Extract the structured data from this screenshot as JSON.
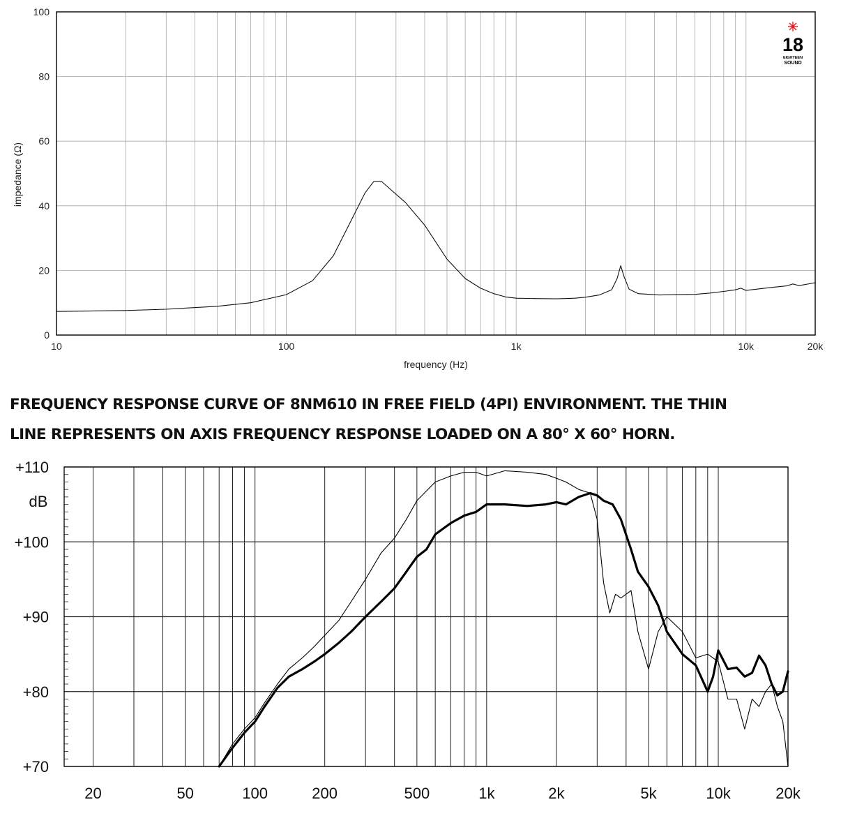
{
  "caption": {
    "line1": "FREQUENCY RESPONSE CURVE OF 8NM610 IN FREE FIELD (4PI) ENVIRONMENT. THE THIN",
    "line2": "LINE REPRESENTS ON AXIS FREQUENCY RESPONSE LOADED ON A 80° X 60° HORN."
  },
  "logo": {
    "number": "18",
    "line1": "EIGHTEEN",
    "line2": "SOUND",
    "star_color": "#e41b23"
  },
  "chart_data": [
    {
      "type": "line",
      "title": "",
      "xlabel": "frequency (Hz)",
      "ylabel": "impedance (Ω)",
      "xscale": "log",
      "xlim": [
        10,
        20000
      ],
      "ylim": [
        0,
        100
      ],
      "grid": true,
      "x_ticks": [
        {
          "value": 10,
          "label": "10"
        },
        {
          "value": 100,
          "label": "100"
        },
        {
          "value": 1000,
          "label": "1k"
        },
        {
          "value": 10000,
          "label": "10k"
        },
        {
          "value": 20000,
          "label": "20k"
        }
      ],
      "y_ticks": [
        {
          "value": 0,
          "label": "0"
        },
        {
          "value": 20,
          "label": "20"
        },
        {
          "value": 40,
          "label": "40"
        },
        {
          "value": 60,
          "label": "60"
        },
        {
          "value": 80,
          "label": "80"
        },
        {
          "value": 100,
          "label": "100"
        }
      ],
      "series": [
        {
          "name": "",
          "x": [
            10,
            20,
            30,
            50,
            70,
            100,
            130,
            160,
            190,
            220,
            240,
            260,
            290,
            330,
            400,
            500,
            600,
            700,
            800,
            900,
            1000,
            1200,
            1500,
            1800,
            2000,
            2300,
            2600,
            2750,
            2850,
            2950,
            3100,
            3400,
            3800,
            4200,
            5000,
            6000,
            7000,
            8000,
            9000,
            9500,
            10000,
            12000,
            15000,
            16000,
            17000,
            20000
          ],
          "y": [
            7.3,
            7.6,
            8.0,
            8.9,
            10.0,
            12.5,
            16.8,
            24.5,
            35.0,
            44.0,
            47.5,
            47.5,
            44.5,
            41.0,
            34.0,
            23.5,
            17.5,
            14.5,
            12.8,
            11.8,
            11.4,
            11.3,
            11.2,
            11.4,
            11.7,
            12.4,
            14.0,
            17.5,
            21.5,
            18.0,
            14.2,
            12.8,
            12.6,
            12.4,
            12.5,
            12.6,
            13.0,
            13.5,
            14.0,
            14.5,
            13.8,
            14.5,
            15.2,
            15.8,
            15.3,
            16.2
          ]
        }
      ]
    },
    {
      "type": "line",
      "title": "",
      "xlabel": "",
      "ylabel": "dB",
      "xscale": "log",
      "xlim": [
        15,
        20000
      ],
      "ylim": [
        70,
        110
      ],
      "grid": true,
      "x_ticks": [
        {
          "value": 20,
          "label": "20"
        },
        {
          "value": 50,
          "label": "50"
        },
        {
          "value": 100,
          "label": "100"
        },
        {
          "value": 200,
          "label": "200"
        },
        {
          "value": 500,
          "label": "500"
        },
        {
          "value": 1000,
          "label": "1k"
        },
        {
          "value": 2000,
          "label": "2k"
        },
        {
          "value": 5000,
          "label": "5k"
        },
        {
          "value": 10000,
          "label": "10k"
        },
        {
          "value": 20000,
          "label": "20k"
        }
      ],
      "y_ticks": [
        {
          "value": 70,
          "label": "+70"
        },
        {
          "value": 80,
          "label": "+80"
        },
        {
          "value": 90,
          "label": "+90"
        },
        {
          "value": 100,
          "label": "+100"
        },
        {
          "value": 110,
          "label": "+110"
        }
      ],
      "series": [
        {
          "name": "",
          "style": "thick",
          "x": [
            70,
            80,
            90,
            100,
            110,
            125,
            140,
            160,
            180,
            200,
            230,
            260,
            300,
            350,
            400,
            450,
            500,
            550,
            600,
            700,
            800,
            900,
            1000,
            1200,
            1500,
            1800,
            2000,
            2200,
            2500,
            2800,
            3000,
            3200,
            3500,
            3800,
            4200,
            4500,
            5000,
            5500,
            6000,
            7000,
            8000,
            9000,
            9500,
            10000,
            11000,
            12000,
            13000,
            14000,
            15000,
            16000,
            17000,
            18000,
            19000,
            20000
          ],
          "y": [
            70.0,
            72.5,
            74.5,
            76.0,
            78.0,
            80.5,
            82.0,
            83.0,
            84.0,
            85.0,
            86.5,
            88.0,
            90.0,
            92.0,
            93.8,
            96.0,
            98.0,
            99.0,
            101.0,
            102.5,
            103.5,
            104.0,
            105.0,
            105.0,
            104.8,
            105.0,
            105.3,
            105.0,
            106.0,
            106.5,
            106.2,
            105.5,
            105.0,
            103.0,
            99.0,
            96.0,
            94.0,
            91.5,
            88.0,
            85.0,
            83.5,
            80.0,
            82.0,
            85.5,
            83.0,
            83.2,
            82.0,
            82.5,
            84.8,
            83.5,
            81.0,
            79.5,
            80.0,
            82.7
          ]
        },
        {
          "name": "",
          "style": "thin",
          "x": [
            70,
            80,
            90,
            100,
            110,
            125,
            140,
            160,
            180,
            200,
            230,
            260,
            300,
            350,
            400,
            450,
            500,
            600,
            700,
            800,
            900,
            1000,
            1200,
            1500,
            1800,
            2000,
            2200,
            2500,
            2800,
            3000,
            3200,
            3400,
            3600,
            3800,
            4000,
            4200,
            4500,
            5000,
            5500,
            6000,
            7000,
            8000,
            9000,
            10000,
            11000,
            12000,
            13000,
            14000,
            15000,
            16000,
            17000,
            18000,
            19000,
            20000
          ],
          "y": [
            70.0,
            73.0,
            75.0,
            76.5,
            78.5,
            81.0,
            83.0,
            84.5,
            86.0,
            87.5,
            89.5,
            92.0,
            95.0,
            98.5,
            100.5,
            103.0,
            105.5,
            108.0,
            108.8,
            109.3,
            109.3,
            108.8,
            109.5,
            109.3,
            109.0,
            108.5,
            108.0,
            107.0,
            106.5,
            103.0,
            94.5,
            90.5,
            93.0,
            92.5,
            93.0,
            93.5,
            88.0,
            83.0,
            88.0,
            90.0,
            88.0,
            84.5,
            85.0,
            84.0,
            79.0,
            79.0,
            75.0,
            79.0,
            78.0,
            80.0,
            81.0,
            78.0,
            76.0,
            70.0
          ]
        }
      ]
    }
  ]
}
